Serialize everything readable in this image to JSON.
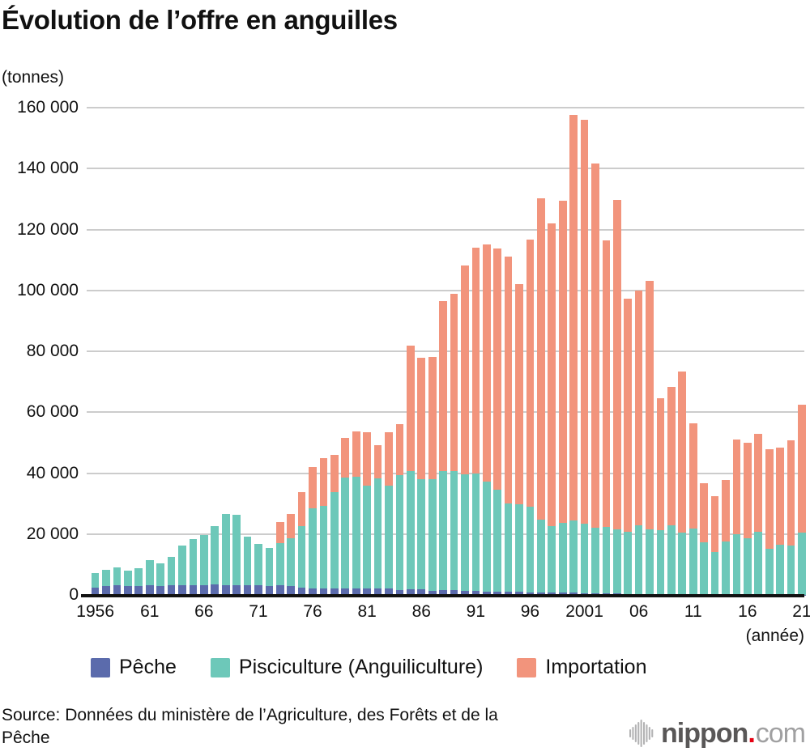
{
  "title": "Évolution de l’offre en anguilles",
  "unit_label": "(tonnes)",
  "x_axis_unit": "(année)",
  "source": "Source: Données du ministère de l’Agriculture, des Forêts et de la Pêche",
  "logo": {
    "brand": "nippon",
    "dot": ".",
    "tld": "com"
  },
  "colors": {
    "peche": "#5b6bac",
    "pisciculture": "#6dc8b9",
    "importation": "#f2947c",
    "gridline": "#cccccc",
    "axis": "#111111",
    "logo_gray": "#595757",
    "logo_light_gray": "#a0a0a1",
    "logo_red": "#e60012"
  },
  "chart_data": {
    "type": "bar",
    "stacked": true,
    "title": "Évolution de l’offre en anguilles",
    "ylabel": "(tonnes)",
    "xlabel": "(année)",
    "grid": true,
    "legend_position": "bottom",
    "ylim": [
      0,
      160000
    ],
    "ytick_step": 20000,
    "ytick_labels": [
      "0",
      "20 000",
      "40 000",
      "60 000",
      "80 000",
      "100 000",
      "120 000",
      "140 000",
      "160 000"
    ],
    "x": [
      1956,
      1957,
      1958,
      1959,
      1960,
      1961,
      1962,
      1963,
      1964,
      1965,
      1966,
      1967,
      1968,
      1969,
      1970,
      1971,
      1972,
      1973,
      1974,
      1975,
      1976,
      1977,
      1978,
      1979,
      1980,
      1981,
      1982,
      1983,
      1984,
      1985,
      1986,
      1987,
      1988,
      1989,
      1990,
      1991,
      1992,
      1993,
      1994,
      1995,
      1996,
      1997,
      1998,
      1999,
      2000,
      2001,
      2002,
      2003,
      2004,
      2005,
      2006,
      2007,
      2008,
      2009,
      2010,
      2011,
      2012,
      2013,
      2014,
      2015,
      2016,
      2017,
      2018,
      2019,
      2020,
      2021
    ],
    "x_ticks": [
      {
        "year": 1956,
        "label": "1956"
      },
      {
        "year": 1961,
        "label": "61"
      },
      {
        "year": 1966,
        "label": "66"
      },
      {
        "year": 1971,
        "label": "71"
      },
      {
        "year": 1976,
        "label": "76"
      },
      {
        "year": 1981,
        "label": "81"
      },
      {
        "year": 1986,
        "label": "86"
      },
      {
        "year": 1991,
        "label": "91"
      },
      {
        "year": 1996,
        "label": "96"
      },
      {
        "year": 2001,
        "label": "2001"
      },
      {
        "year": 2006,
        "label": "06"
      },
      {
        "year": 2011,
        "label": "11"
      },
      {
        "year": 2016,
        "label": "16"
      },
      {
        "year": 2021,
        "label": "21"
      }
    ],
    "series": [
      {
        "name": "Pêche",
        "color": "#5b6bac",
        "values": [
          2400,
          2800,
          3100,
          2800,
          2800,
          3300,
          2800,
          3100,
          3100,
          3100,
          3100,
          3500,
          3300,
          3300,
          3300,
          3100,
          2800,
          3100,
          2800,
          2400,
          2200,
          2000,
          2000,
          2000,
          2000,
          2000,
          2000,
          2200,
          1500,
          1800,
          1800,
          1300,
          1500,
          1500,
          1300,
          1300,
          1100,
          1100,
          1000,
          1000,
          900,
          900,
          800,
          700,
          700,
          600,
          600,
          500,
          500,
          400,
          400,
          300,
          300,
          300,
          200,
          200,
          200,
          100,
          100,
          100,
          100,
          100,
          100,
          100,
          100,
          100
        ]
      },
      {
        "name": "Pisciculture (Anguiliculture)",
        "color": "#6dc8b9",
        "values": [
          4700,
          5500,
          5900,
          5300,
          6000,
          8100,
          7600,
          9300,
          13000,
          15200,
          16600,
          19100,
          23400,
          23000,
          15900,
          13600,
          12600,
          13800,
          15800,
          20200,
          26200,
          27200,
          31700,
          36500,
          36700,
          33800,
          36300,
          33700,
          37800,
          39000,
          36100,
          36700,
          39100,
          39300,
          38200,
          38600,
          36100,
          33500,
          29100,
          28700,
          28100,
          23900,
          21800,
          23000,
          23800,
          22900,
          21500,
          21800,
          21000,
          20400,
          22400,
          21200,
          21000,
          22500,
          20300,
          21700,
          17100,
          14100,
          17400,
          19800,
          18500,
          20700,
          15000,
          16300,
          16000,
          20300
        ]
      },
      {
        "name": "Importation",
        "color": "#f2947c",
        "values": [
          0,
          0,
          0,
          0,
          0,
          0,
          0,
          0,
          0,
          0,
          0,
          0,
          0,
          0,
          0,
          0,
          0,
          7000,
          8000,
          11100,
          13700,
          15600,
          12300,
          13100,
          14900,
          17600,
          10900,
          17500,
          16800,
          41100,
          39900,
          40100,
          55800,
          58100,
          68800,
          74200,
          77800,
          79200,
          81100,
          72500,
          87600,
          105400,
          99500,
          105800,
          133000,
          132600,
          119600,
          94200,
          108300,
          76400,
          77200,
          81500,
          43400,
          45600,
          52800,
          34400,
          19300,
          18300,
          20200,
          31200,
          31300,
          32100,
          32700,
          31900,
          34600,
          42100
        ]
      }
    ]
  }
}
